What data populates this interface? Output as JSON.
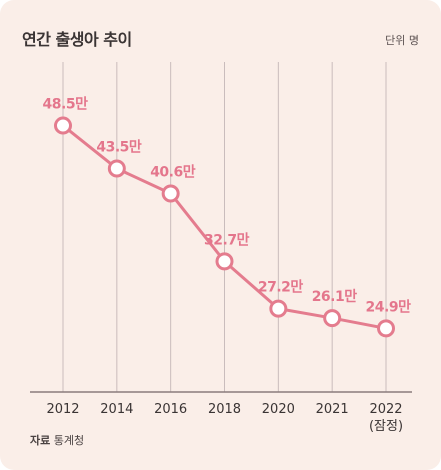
{
  "header": {
    "title": "연간 출생아 추이",
    "unit": "단위 명"
  },
  "footer": {
    "source_label": "자료",
    "source_value": "통계청"
  },
  "colors": {
    "background": "#faeee8",
    "line": "#e47c8e",
    "marker_fill": "#ffffff",
    "label": "#e4768c",
    "grid": "#c9bcbc",
    "axis": "#8a7c7c"
  },
  "chart_data": {
    "type": "line",
    "title": "연간 출생아 추이",
    "unit": "단위 명",
    "categories": [
      "2012",
      "2014",
      "2016",
      "2018",
      "2020",
      "2021",
      "2022"
    ],
    "category_sublabels": [
      "",
      "",
      "",
      "",
      "",
      "",
      "(잠정)"
    ],
    "values": [
      48.5,
      43.5,
      40.6,
      32.7,
      27.2,
      26.1,
      24.9
    ],
    "data_labels": [
      "48.5만",
      "43.5만",
      "40.6만",
      "32.7만",
      "27.2만",
      "26.1만",
      "24.9만"
    ],
    "ylim": [
      17.5,
      53.8
    ],
    "grid": "vertical",
    "legend": "none"
  }
}
